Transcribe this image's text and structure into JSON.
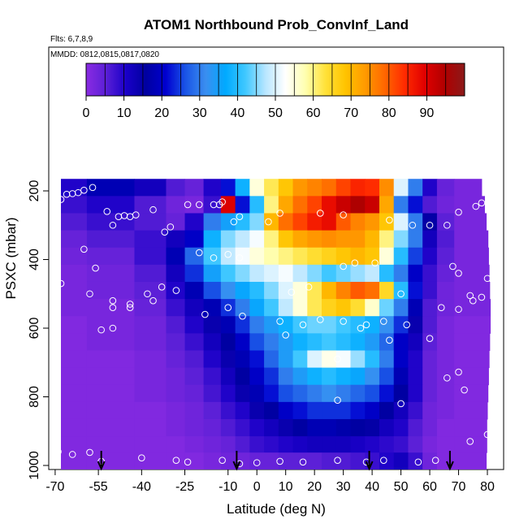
{
  "chart_data": {
    "type": "heatmap",
    "title": "ATOM1 Northbound Prob_ConvInf_Land",
    "subtitle": "Flts: 6,7,8,9",
    "annotation": "MMDD: 0812,0815,0817,0820",
    "xlabel": "Latitude (deg N)",
    "ylabel": "PSXC (mbar)",
    "xlim": [
      -70,
      85
    ],
    "ylim": [
      1000,
      130
    ],
    "y_reversed": true,
    "x_ticks": [
      -70,
      -55,
      -40,
      -25,
      -10,
      0,
      10,
      20,
      30,
      40,
      50,
      60,
      70,
      80
    ],
    "y_ticks": [
      200,
      400,
      600,
      800,
      1000
    ],
    "colorbar": {
      "min": 0,
      "max": 100,
      "ticks": [
        0,
        10,
        20,
        30,
        40,
        50,
        60,
        70,
        80,
        90
      ],
      "colors": [
        "#8a2be2",
        "#5a1fd6",
        "#1a00c8",
        "#0000a0",
        "#0000d0",
        "#1a55e6",
        "#3a8ef0",
        "#00aaff",
        "#40c8ff",
        "#b8e6ff",
        "#ffffff",
        "#ffffb0",
        "#ffe23a",
        "#ffc400",
        "#ff9a00",
        "#ff6600",
        "#ff2a00",
        "#e00000",
        "#b00000",
        "#8b1a1a"
      ]
    },
    "levels_mbar": [
      190,
      240,
      290,
      340,
      390,
      440,
      490,
      540,
      590,
      640,
      690,
      740,
      790,
      840,
      890,
      940,
      985
    ],
    "profile_lat": [
      -68,
      -50,
      -35,
      -28,
      -22,
      -15,
      -10,
      -5,
      0,
      5,
      10,
      15,
      20,
      25,
      30,
      35,
      40,
      45,
      50,
      55,
      60,
      65,
      72
    ],
    "values": [
      [
        10,
        18,
        12,
        6,
        4,
        10,
        22,
        38,
        55,
        62,
        68,
        74,
        76,
        78,
        82,
        85,
        84,
        75,
        50,
        30,
        10,
        4,
        2
      ],
      [
        8,
        10,
        6,
        3,
        2,
        8,
        90,
        22,
        40,
        60,
        72,
        78,
        82,
        88,
        92,
        95,
        92,
        72,
        30,
        22,
        6,
        3,
        2
      ],
      [
        6,
        8,
        6,
        4,
        10,
        30,
        35,
        40,
        45,
        70,
        78,
        82,
        86,
        88,
        80,
        76,
        74,
        68,
        50,
        30,
        15,
        5,
        2
      ],
      [
        4,
        6,
        8,
        12,
        20,
        38,
        45,
        48,
        52,
        60,
        68,
        72,
        74,
        75,
        74,
        74,
        70,
        60,
        45,
        30,
        12,
        6,
        2
      ],
      [
        3,
        4,
        8,
        18,
        28,
        42,
        48,
        52,
        55,
        58,
        60,
        62,
        64,
        66,
        68,
        70,
        68,
        55,
        40,
        25,
        10,
        5,
        2
      ],
      [
        2,
        3,
        6,
        12,
        24,
        35,
        42,
        45,
        48,
        50,
        52,
        48,
        45,
        42,
        44,
        46,
        48,
        40,
        30,
        20,
        8,
        4,
        2
      ],
      [
        2,
        3,
        5,
        10,
        18,
        26,
        32,
        36,
        40,
        45,
        50,
        55,
        62,
        70,
        76,
        80,
        78,
        65,
        40,
        22,
        8,
        3,
        2
      ],
      [
        2,
        2,
        4,
        8,
        12,
        18,
        24,
        30,
        36,
        42,
        48,
        55,
        62,
        66,
        68,
        64,
        56,
        44,
        30,
        18,
        6,
        3,
        2
      ],
      [
        1,
        2,
        3,
        6,
        10,
        14,
        18,
        24,
        30,
        34,
        38,
        42,
        44,
        44,
        42,
        40,
        38,
        32,
        24,
        14,
        6,
        2,
        1
      ],
      [
        1,
        2,
        3,
        5,
        8,
        12,
        16,
        20,
        26,
        30,
        34,
        38,
        40,
        42,
        40,
        38,
        34,
        28,
        20,
        12,
        5,
        2,
        1
      ],
      [
        1,
        1,
        2,
        4,
        6,
        10,
        14,
        18,
        22,
        28,
        34,
        42,
        50,
        54,
        52,
        46,
        40,
        30,
        20,
        10,
        4,
        2,
        1
      ],
      [
        1,
        1,
        2,
        3,
        5,
        8,
        12,
        16,
        20,
        24,
        30,
        34,
        38,
        40,
        38,
        36,
        32,
        26,
        18,
        10,
        4,
        2,
        1
      ],
      [
        1,
        1,
        2,
        3,
        4,
        7,
        10,
        14,
        18,
        22,
        26,
        28,
        30,
        32,
        30,
        28,
        26,
        22,
        16,
        10,
        4,
        2,
        1
      ],
      [
        1,
        1,
        1,
        2,
        3,
        5,
        8,
        10,
        14,
        16,
        20,
        22,
        24,
        24,
        24,
        22,
        20,
        16,
        12,
        8,
        3,
        2,
        1
      ],
      [
        1,
        1,
        1,
        2,
        3,
        4,
        6,
        8,
        10,
        12,
        14,
        16,
        18,
        18,
        17,
        16,
        15,
        12,
        10,
        6,
        3,
        1,
        1
      ],
      [
        1,
        1,
        1,
        1,
        2,
        3,
        4,
        6,
        8,
        9,
        10,
        11,
        12,
        12,
        12,
        11,
        10,
        9,
        8,
        5,
        2,
        1,
        1
      ],
      [
        1,
        1,
        1,
        1,
        1,
        2,
        3,
        3,
        4,
        4,
        5,
        5,
        5,
        6,
        6,
        7,
        8,
        10,
        12,
        8,
        3,
        1,
        1
      ]
    ],
    "markers": [
      [
        -68,
        225
      ],
      [
        -66,
        210
      ],
      [
        -64,
        208
      ],
      [
        -62,
        205
      ],
      [
        -60,
        198
      ],
      [
        -57,
        190
      ],
      [
        -52,
        260
      ],
      [
        -50,
        300
      ],
      [
        -48,
        275
      ],
      [
        -46,
        272
      ],
      [
        -44,
        275
      ],
      [
        -42,
        270
      ],
      [
        -36,
        255
      ],
      [
        -32,
        320
      ],
      [
        -30,
        305
      ],
      [
        -24,
        240
      ],
      [
        -20,
        240
      ],
      [
        -15,
        240
      ],
      [
        -13,
        240
      ],
      [
        -12,
        232
      ],
      [
        -8,
        290
      ],
      [
        -6,
        275
      ],
      [
        4,
        290
      ],
      [
        8,
        265
      ],
      [
        22,
        265
      ],
      [
        30,
        270
      ],
      [
        46,
        285
      ],
      [
        54,
        300
      ],
      [
        60,
        300
      ],
      [
        66,
        300
      ],
      [
        70,
        262
      ],
      [
        76,
        245
      ],
      [
        78,
        235
      ],
      [
        -60,
        370
      ],
      [
        -56,
        425
      ],
      [
        -50,
        540
      ],
      [
        -44,
        530
      ],
      [
        -38,
        500
      ],
      [
        -33,
        480
      ],
      [
        -28,
        490
      ],
      [
        -20,
        380
      ],
      [
        -15,
        395
      ],
      [
        -10,
        385
      ],
      [
        -6,
        395
      ],
      [
        12,
        495
      ],
      [
        18,
        480
      ],
      [
        30,
        420
      ],
      [
        34,
        410
      ],
      [
        41,
        410
      ],
      [
        50,
        500
      ],
      [
        68,
        420
      ],
      [
        70,
        440
      ],
      [
        74,
        505
      ],
      [
        75,
        520
      ],
      [
        78,
        510
      ],
      [
        80,
        455
      ],
      [
        -68,
        470
      ],
      [
        -58,
        500
      ],
      [
        -50,
        520
      ],
      [
        -44,
        540
      ],
      [
        -36,
        520
      ],
      [
        -18,
        560
      ],
      [
        -10,
        540
      ],
      [
        -5,
        565
      ],
      [
        8,
        580
      ],
      [
        16,
        590
      ],
      [
        22,
        575
      ],
      [
        30,
        580
      ],
      [
        38,
        590
      ],
      [
        44,
        580
      ],
      [
        52,
        590
      ],
      [
        60,
        630
      ],
      [
        64,
        540
      ],
      [
        70,
        545
      ],
      [
        -54,
        605
      ],
      [
        -50,
        600
      ],
      [
        10,
        620
      ],
      [
        28,
        690
      ],
      [
        36,
        600
      ],
      [
        46,
        635
      ],
      [
        66,
        745
      ],
      [
        70,
        728
      ],
      [
        72,
        780
      ],
      [
        28,
        810
      ],
      [
        50,
        820
      ],
      [
        74,
        930
      ],
      [
        80,
        910
      ],
      [
        -69,
        960
      ],
      [
        -64,
        968
      ],
      [
        -58,
        962
      ],
      [
        -54,
        988
      ],
      [
        -40,
        978
      ],
      [
        -28,
        985
      ],
      [
        -24,
        990
      ],
      [
        -12,
        985
      ],
      [
        -6,
        995
      ],
      [
        0,
        992
      ],
      [
        8,
        988
      ],
      [
        16,
        990
      ],
      [
        28,
        985
      ],
      [
        38,
        990
      ],
      [
        44,
        985
      ],
      [
        56,
        990
      ],
      [
        62,
        985
      ]
    ],
    "arrows_lat": [
      -54,
      -7,
      39,
      67
    ]
  }
}
